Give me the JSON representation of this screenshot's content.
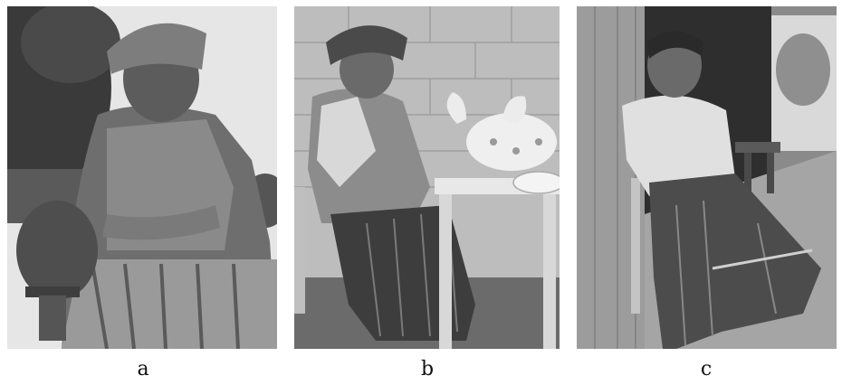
{
  "figure": {
    "panels": [
      {
        "id": "a",
        "caption": "a",
        "subject": "bronze-statue-of-woman-with-pot"
      },
      {
        "id": "b",
        "caption": "b",
        "subject": "woman-seated-at-table-with-clay-vessel"
      },
      {
        "id": "c",
        "caption": "c",
        "subject": "woman-seated-on-chair-in-doorway"
      }
    ]
  },
  "colors": {
    "background": "#ffffff",
    "sky": "#e9e9e9",
    "dark": "#2a2a2a",
    "mid": "#7a7a7a",
    "light": "#d6d6d6"
  }
}
